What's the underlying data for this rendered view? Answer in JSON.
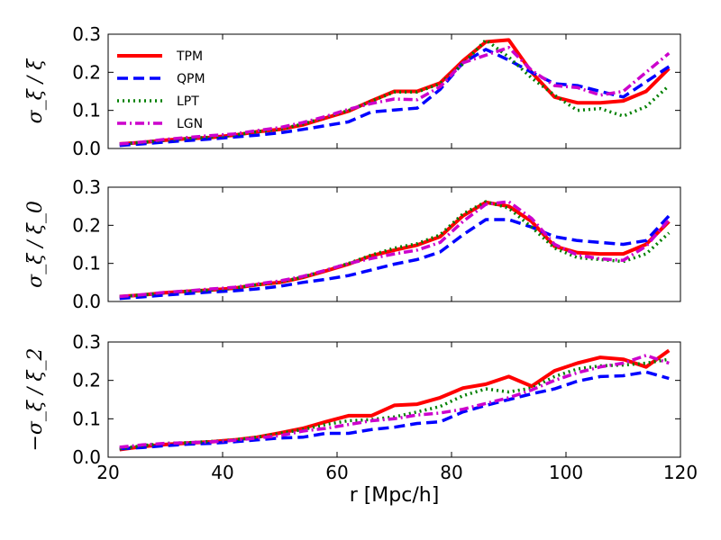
{
  "chart_data": [
    {
      "type": "line",
      "ylabel": "σ_ξ / ξ",
      "xlim": [
        20,
        120
      ],
      "ylim": [
        0.0,
        0.3
      ],
      "yticks": [
        "0.0",
        "0.1",
        "0.2",
        "0.3"
      ],
      "legend": {
        "position": "top-left",
        "entries": [
          "TPM",
          "QPM",
          "LPT",
          "LGN"
        ]
      },
      "series": [
        {
          "name": "TPM",
          "color": "#ff0000",
          "dash": "solid",
          "x": [
            22,
            26,
            30,
            34,
            38,
            42,
            46,
            50,
            54,
            58,
            62,
            66,
            70,
            74,
            78,
            82,
            86,
            90,
            94,
            98,
            102,
            106,
            110,
            114,
            118
          ],
          "y": [
            0.012,
            0.016,
            0.022,
            0.026,
            0.029,
            0.035,
            0.044,
            0.05,
            0.062,
            0.08,
            0.098,
            0.125,
            0.15,
            0.15,
            0.172,
            0.23,
            0.28,
            0.285,
            0.2,
            0.135,
            0.12,
            0.12,
            0.125,
            0.15,
            0.21
          ]
        },
        {
          "name": "QPM",
          "color": "#0000ff",
          "dash": "dashed",
          "x": [
            22,
            26,
            30,
            34,
            38,
            42,
            46,
            50,
            54,
            58,
            62,
            66,
            70,
            74,
            78,
            82,
            86,
            90,
            94,
            98,
            102,
            106,
            110,
            114,
            118
          ],
          "y": [
            0.008,
            0.012,
            0.017,
            0.021,
            0.025,
            0.03,
            0.035,
            0.041,
            0.05,
            0.06,
            0.07,
            0.096,
            0.101,
            0.106,
            0.155,
            0.225,
            0.26,
            0.232,
            0.2,
            0.17,
            0.165,
            0.15,
            0.135,
            0.175,
            0.215
          ]
        },
        {
          "name": "LPT",
          "color": "#008000",
          "dash": "dotted",
          "x": [
            22,
            26,
            30,
            34,
            38,
            42,
            46,
            50,
            54,
            58,
            62,
            66,
            70,
            74,
            78,
            82,
            86,
            90,
            94,
            98,
            102,
            106,
            110,
            114,
            118
          ],
          "y": [
            0.012,
            0.016,
            0.022,
            0.026,
            0.03,
            0.035,
            0.044,
            0.051,
            0.064,
            0.082,
            0.1,
            0.124,
            0.148,
            0.148,
            0.17,
            0.222,
            0.285,
            0.24,
            0.185,
            0.14,
            0.1,
            0.105,
            0.085,
            0.11,
            0.165
          ]
        },
        {
          "name": "LGN",
          "color": "#cc00cc",
          "dash": "dashdot",
          "x": [
            22,
            26,
            30,
            34,
            38,
            42,
            46,
            50,
            54,
            58,
            62,
            66,
            70,
            74,
            78,
            82,
            86,
            90,
            94,
            98,
            102,
            106,
            110,
            114,
            118
          ],
          "y": [
            0.012,
            0.017,
            0.024,
            0.029,
            0.034,
            0.038,
            0.047,
            0.055,
            0.068,
            0.084,
            0.103,
            0.118,
            0.13,
            0.128,
            0.162,
            0.225,
            0.245,
            0.265,
            0.205,
            0.165,
            0.16,
            0.14,
            0.15,
            0.2,
            0.25
          ]
        }
      ]
    },
    {
      "type": "line",
      "ylabel": "σ_ξ / ξ_0",
      "xlim": [
        20,
        120
      ],
      "ylim": [
        0.0,
        0.3
      ],
      "yticks": [
        "0.0",
        "0.1",
        "0.2",
        "0.3"
      ],
      "series": [
        {
          "name": "TPM",
          "color": "#ff0000",
          "dash": "solid",
          "x": [
            22,
            26,
            30,
            34,
            38,
            42,
            46,
            50,
            54,
            58,
            62,
            66,
            70,
            74,
            78,
            82,
            86,
            90,
            94,
            98,
            102,
            106,
            110,
            114,
            118
          ],
          "y": [
            0.013,
            0.017,
            0.023,
            0.027,
            0.03,
            0.035,
            0.044,
            0.05,
            0.063,
            0.08,
            0.098,
            0.12,
            0.135,
            0.148,
            0.17,
            0.225,
            0.26,
            0.25,
            0.21,
            0.145,
            0.128,
            0.125,
            0.125,
            0.15,
            0.21
          ]
        },
        {
          "name": "QPM",
          "color": "#0000ff",
          "dash": "dashed",
          "x": [
            22,
            26,
            30,
            34,
            38,
            42,
            46,
            50,
            54,
            58,
            62,
            66,
            70,
            74,
            78,
            82,
            86,
            90,
            94,
            98,
            102,
            106,
            110,
            114,
            118
          ],
          "y": [
            0.008,
            0.012,
            0.017,
            0.021,
            0.025,
            0.028,
            0.033,
            0.04,
            0.05,
            0.058,
            0.068,
            0.083,
            0.098,
            0.11,
            0.13,
            0.175,
            0.215,
            0.215,
            0.195,
            0.17,
            0.16,
            0.155,
            0.15,
            0.16,
            0.225
          ]
        },
        {
          "name": "LPT",
          "color": "#008000",
          "dash": "dotted",
          "x": [
            22,
            26,
            30,
            34,
            38,
            42,
            46,
            50,
            54,
            58,
            62,
            66,
            70,
            74,
            78,
            82,
            86,
            90,
            94,
            98,
            102,
            106,
            110,
            114,
            118
          ],
          "y": [
            0.013,
            0.017,
            0.023,
            0.027,
            0.03,
            0.035,
            0.044,
            0.051,
            0.064,
            0.082,
            0.1,
            0.122,
            0.14,
            0.152,
            0.175,
            0.23,
            0.262,
            0.245,
            0.195,
            0.14,
            0.115,
            0.11,
            0.105,
            0.125,
            0.18
          ]
        },
        {
          "name": "LGN",
          "color": "#cc00cc",
          "dash": "dashdot",
          "x": [
            22,
            26,
            30,
            34,
            38,
            42,
            46,
            50,
            54,
            58,
            62,
            66,
            70,
            74,
            78,
            82,
            86,
            90,
            94,
            98,
            102,
            106,
            110,
            114,
            118
          ],
          "y": [
            0.013,
            0.018,
            0.024,
            0.028,
            0.033,
            0.037,
            0.046,
            0.054,
            0.066,
            0.082,
            0.1,
            0.113,
            0.125,
            0.135,
            0.155,
            0.21,
            0.255,
            0.262,
            0.218,
            0.15,
            0.122,
            0.112,
            0.108,
            0.145,
            0.215
          ]
        }
      ]
    },
    {
      "type": "line",
      "ylabel": "−σ_ξ / ξ_2",
      "xlabel": "r  [Mpc/h]",
      "xlim": [
        20,
        120
      ],
      "ylim": [
        0.0,
        0.3
      ],
      "xticks": [
        "20",
        "40",
        "60",
        "80",
        "100",
        "120"
      ],
      "yticks": [
        "0.0",
        "0.1",
        "0.2",
        "0.3"
      ],
      "series": [
        {
          "name": "TPM",
          "color": "#ff0000",
          "dash": "solid",
          "x": [
            22,
            26,
            30,
            34,
            38,
            42,
            46,
            50,
            54,
            58,
            62,
            66,
            70,
            74,
            78,
            82,
            86,
            90,
            94,
            98,
            102,
            106,
            110,
            114,
            118
          ],
          "y": [
            0.02,
            0.028,
            0.033,
            0.037,
            0.04,
            0.045,
            0.052,
            0.063,
            0.075,
            0.092,
            0.108,
            0.108,
            0.135,
            0.138,
            0.155,
            0.18,
            0.19,
            0.21,
            0.185,
            0.225,
            0.245,
            0.26,
            0.255,
            0.235,
            0.278
          ]
        },
        {
          "name": "QPM",
          "color": "#0000ff",
          "dash": "dashed",
          "x": [
            22,
            26,
            30,
            34,
            38,
            42,
            46,
            50,
            54,
            58,
            62,
            66,
            70,
            74,
            78,
            82,
            86,
            90,
            94,
            98,
            102,
            106,
            110,
            114,
            118
          ],
          "y": [
            0.022,
            0.025,
            0.03,
            0.034,
            0.036,
            0.04,
            0.045,
            0.05,
            0.052,
            0.062,
            0.062,
            0.072,
            0.078,
            0.088,
            0.092,
            0.118,
            0.135,
            0.15,
            0.165,
            0.178,
            0.198,
            0.21,
            0.212,
            0.222,
            0.205
          ]
        },
        {
          "name": "LPT",
          "color": "#008000",
          "dash": "dotted",
          "x": [
            22,
            26,
            30,
            34,
            38,
            42,
            46,
            50,
            54,
            58,
            62,
            66,
            70,
            74,
            78,
            82,
            86,
            90,
            94,
            98,
            102,
            106,
            110,
            114,
            118
          ],
          "y": [
            0.022,
            0.03,
            0.036,
            0.038,
            0.041,
            0.045,
            0.052,
            0.062,
            0.072,
            0.085,
            0.095,
            0.098,
            0.105,
            0.118,
            0.132,
            0.16,
            0.178,
            0.17,
            0.18,
            0.21,
            0.23,
            0.238,
            0.24,
            0.245,
            0.255
          ]
        },
        {
          "name": "LGN",
          "color": "#cc00cc",
          "dash": "dashdot",
          "x": [
            22,
            26,
            30,
            34,
            38,
            42,
            46,
            50,
            54,
            58,
            62,
            66,
            70,
            74,
            78,
            82,
            86,
            90,
            94,
            98,
            102,
            106,
            110,
            114,
            118
          ],
          "y": [
            0.026,
            0.032,
            0.036,
            0.038,
            0.04,
            0.044,
            0.05,
            0.056,
            0.068,
            0.075,
            0.085,
            0.095,
            0.1,
            0.11,
            0.115,
            0.125,
            0.14,
            0.155,
            0.175,
            0.2,
            0.22,
            0.235,
            0.245,
            0.265,
            0.245
          ]
        }
      ]
    }
  ]
}
